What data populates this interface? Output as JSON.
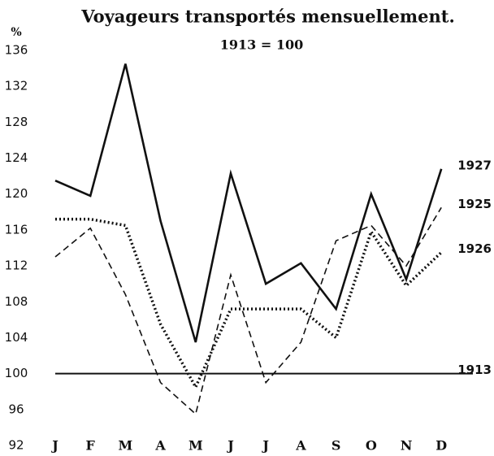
{
  "chart_data": {
    "type": "line",
    "title": "Voyageurs transportés mensuellement.",
    "subtitle": "1913 = 100",
    "y_label": "%",
    "categories": [
      "J",
      "F",
      "M",
      "A",
      "M",
      "J",
      "J",
      "A",
      "S",
      "O",
      "N",
      "D"
    ],
    "ylim": [
      92,
      136
    ],
    "yticks": [
      92,
      96,
      100,
      104,
      108,
      112,
      116,
      120,
      124,
      128,
      132,
      136
    ],
    "series": [
      {
        "name": "1927",
        "color": "#111111",
        "linestyle": "solid",
        "values": [
          121.5,
          119.8,
          134.5,
          117,
          103.5,
          122.3,
          110,
          112.3,
          107.2,
          120,
          110.5,
          122.8
        ]
      },
      {
        "name": "1925",
        "color": "#111111",
        "linestyle": "dashed",
        "values": [
          113,
          116.2,
          108.8,
          99,
          95.5,
          111,
          99,
          103.5,
          114.8,
          116.5,
          112,
          118.5
        ]
      },
      {
        "name": "1926",
        "color": "#111111",
        "linestyle": "dotted",
        "values": [
          117.2,
          117.2,
          116.5,
          105.5,
          98.5,
          107.2,
          107.2,
          107.2,
          104,
          115.8,
          109.8,
          113.5
        ]
      },
      {
        "name": "1913",
        "color": "#111111",
        "linestyle": "thin",
        "values": [
          100,
          100,
          100,
          100,
          100,
          100,
          100,
          100,
          100,
          100,
          100,
          100
        ]
      }
    ]
  }
}
